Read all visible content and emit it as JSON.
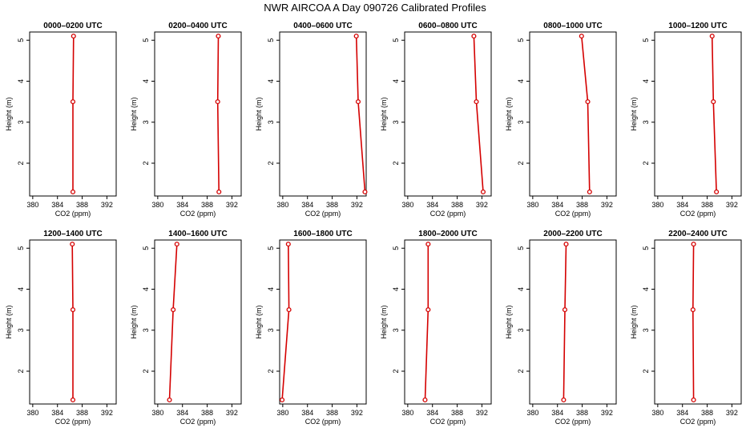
{
  "figure_title": "NWR AIRCOA A  Day 090726  Calibrated Profiles",
  "chart_data": [
    {
      "type": "line",
      "title": "0000–0200 UTC",
      "xlabel": "CO2 (ppm)",
      "ylabel": "Height (m)",
      "xlim": [
        379.5,
        393.5
      ],
      "ylim": [
        1.2,
        5.2
      ],
      "xticks": [
        380,
        384,
        388,
        392
      ],
      "yticks": [
        2,
        3,
        4,
        5
      ],
      "x": [
        386.6,
        386.5,
        386.5
      ],
      "y": [
        5.1,
        3.5,
        1.3
      ]
    },
    {
      "type": "line",
      "title": "0200–0400 UTC",
      "xlabel": "CO2 (ppm)",
      "ylabel": "Height (m)",
      "xlim": [
        379.5,
        393.5
      ],
      "ylim": [
        1.2,
        5.2
      ],
      "xticks": [
        380,
        384,
        388,
        392
      ],
      "yticks": [
        2,
        3,
        4,
        5
      ],
      "x": [
        389.8,
        389.7,
        389.9
      ],
      "y": [
        5.1,
        3.5,
        1.3
      ]
    },
    {
      "type": "line",
      "title": "0400–0600 UTC",
      "xlabel": "CO2 (ppm)",
      "ylabel": "Height (m)",
      "xlim": [
        379.5,
        393.5
      ],
      "ylim": [
        1.2,
        5.2
      ],
      "xticks": [
        380,
        384,
        388,
        392
      ],
      "yticks": [
        2,
        3,
        4,
        5
      ],
      "x": [
        391.9,
        392.2,
        393.3
      ],
      "y": [
        5.1,
        3.5,
        1.3
      ]
    },
    {
      "type": "line",
      "title": "0600–0800 UTC",
      "xlabel": "CO2 (ppm)",
      "ylabel": "Height (m)",
      "xlim": [
        379.5,
        393.5
      ],
      "ylim": [
        1.2,
        5.2
      ],
      "xticks": [
        380,
        384,
        388,
        392
      ],
      "yticks": [
        2,
        3,
        4,
        5
      ],
      "x": [
        390.7,
        391.1,
        392.2
      ],
      "y": [
        5.1,
        3.5,
        1.3
      ]
    },
    {
      "type": "line",
      "title": "0800–1000 UTC",
      "xlabel": "CO2 (ppm)",
      "ylabel": "Height (m)",
      "xlim": [
        379.5,
        393.5
      ],
      "ylim": [
        1.2,
        5.2
      ],
      "xticks": [
        380,
        384,
        388,
        392
      ],
      "yticks": [
        2,
        3,
        4,
        5
      ],
      "x": [
        387.9,
        388.9,
        389.2
      ],
      "y": [
        5.1,
        3.5,
        1.3
      ]
    },
    {
      "type": "line",
      "title": "1000–1200 UTC",
      "xlabel": "CO2 (ppm)",
      "ylabel": "Height (m)",
      "xlim": [
        379.5,
        393.5
      ],
      "ylim": [
        1.2,
        5.2
      ],
      "xticks": [
        380,
        384,
        388,
        392
      ],
      "yticks": [
        2,
        3,
        4,
        5
      ],
      "x": [
        388.8,
        389.0,
        389.5
      ],
      "y": [
        5.1,
        3.5,
        1.3
      ]
    },
    {
      "type": "line",
      "title": "1200–1400 UTC",
      "xlabel": "CO2 (ppm)",
      "ylabel": "Height (m)",
      "xlim": [
        379.5,
        393.5
      ],
      "ylim": [
        1.2,
        5.2
      ],
      "xticks": [
        380,
        384,
        388,
        392
      ],
      "yticks": [
        2,
        3,
        4,
        5
      ],
      "x": [
        386.4,
        386.5,
        386.5
      ],
      "y": [
        5.1,
        3.5,
        1.3
      ]
    },
    {
      "type": "line",
      "title": "1400–1600 UTC",
      "xlabel": "CO2 (ppm)",
      "ylabel": "Height (m)",
      "xlim": [
        379.5,
        393.5
      ],
      "ylim": [
        1.2,
        5.2
      ],
      "xticks": [
        380,
        384,
        388,
        392
      ],
      "yticks": [
        2,
        3,
        4,
        5
      ],
      "x": [
        383.1,
        382.5,
        381.9
      ],
      "y": [
        5.1,
        3.5,
        1.3
      ]
    },
    {
      "type": "line",
      "title": "1600–1800 UTC",
      "xlabel": "CO2 (ppm)",
      "ylabel": "Height (m)",
      "xlim": [
        379.5,
        393.5
      ],
      "ylim": [
        1.2,
        5.2
      ],
      "xticks": [
        380,
        384,
        388,
        392
      ],
      "yticks": [
        2,
        3,
        4,
        5
      ],
      "x": [
        380.9,
        381.0,
        379.9
      ],
      "y": [
        5.1,
        3.5,
        1.3
      ]
    },
    {
      "type": "line",
      "title": "1800–2000 UTC",
      "xlabel": "CO2 (ppm)",
      "ylabel": "Height (m)",
      "xlim": [
        379.5,
        393.5
      ],
      "ylim": [
        1.2,
        5.2
      ],
      "xticks": [
        380,
        384,
        388,
        392
      ],
      "yticks": [
        2,
        3,
        4,
        5
      ],
      "x": [
        383.3,
        383.3,
        382.8
      ],
      "y": [
        5.1,
        3.5,
        1.3
      ]
    },
    {
      "type": "line",
      "title": "2000–2200 UTC",
      "xlabel": "CO2 (ppm)",
      "ylabel": "Height (m)",
      "xlim": [
        379.5,
        393.5
      ],
      "ylim": [
        1.2,
        5.2
      ],
      "xticks": [
        380,
        384,
        388,
        392
      ],
      "yticks": [
        2,
        3,
        4,
        5
      ],
      "x": [
        385.4,
        385.2,
        385.0
      ],
      "y": [
        5.1,
        3.5,
        1.3
      ]
    },
    {
      "type": "line",
      "title": "2200–2400 UTC",
      "xlabel": "CO2 (ppm)",
      "ylabel": "Height (m)",
      "xlim": [
        379.5,
        393.5
      ],
      "ylim": [
        1.2,
        5.2
      ],
      "xticks": [
        380,
        384,
        388,
        392
      ],
      "yticks": [
        2,
        3,
        4,
        5
      ],
      "x": [
        385.8,
        385.7,
        385.8
      ],
      "y": [
        5.1,
        3.5,
        1.3
      ]
    }
  ]
}
